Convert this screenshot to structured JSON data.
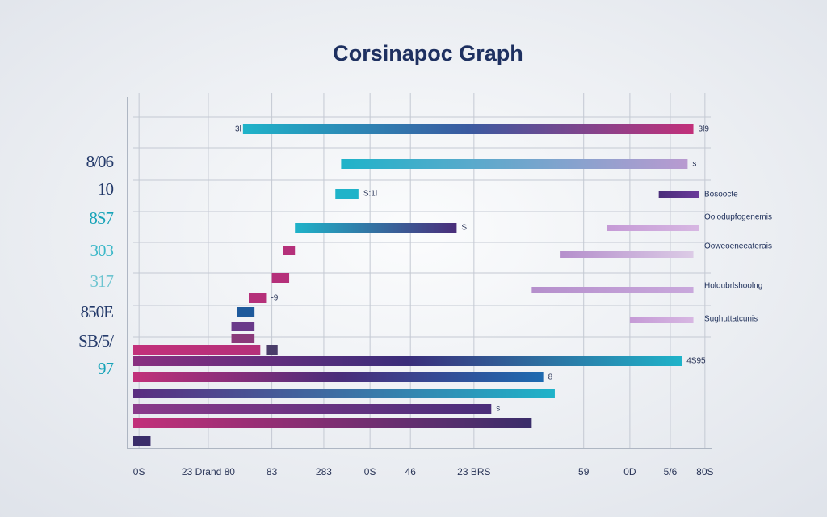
{
  "chart_data": {
    "type": "floating-bar",
    "title": "Corsinapoc Graph",
    "xlim": [
      0,
      100
    ],
    "xticks": [
      {
        "value": 1,
        "label": "0S"
      },
      {
        "value": 13,
        "label": "23 Drand 80"
      },
      {
        "value": 24,
        "label": "83"
      },
      {
        "value": 33,
        "label": "283"
      },
      {
        "value": 41,
        "label": "0S"
      },
      {
        "value": 48,
        "label": "46"
      },
      {
        "value": 59,
        "label": "23 BRS"
      },
      {
        "value": 78,
        "label": "59"
      },
      {
        "value": 86,
        "label": "0D"
      },
      {
        "value": 93,
        "label": "5/6"
      },
      {
        "value": 99,
        "label": "80S"
      }
    ],
    "grid": true,
    "ylabels": [
      {
        "text": "8/06",
        "color": "#243a6a"
      },
      {
        "text": "10",
        "color": "#243a6a"
      },
      {
        "text": "8S7",
        "color": "#17a3b8"
      },
      {
        "text": "303",
        "color": "#3cb8c8"
      },
      {
        "text": "317",
        "color": "#6cc4d0"
      },
      {
        "text": "850E",
        "color": "#243a6a"
      },
      {
        "text": "SB/5/",
        "color": "#243a6a"
      },
      {
        "text": "97",
        "color": "#17a3b8"
      }
    ],
    "bars": [
      {
        "start": 19,
        "end": 97,
        "start_label": "3l",
        "end_label": "3l9",
        "colors": [
          "#1fb3c9",
          "#3a5aa0",
          "#c2307a"
        ]
      },
      {
        "start": 36,
        "end": 96,
        "end_label": "s",
        "colors": [
          "#1fb3c9",
          "#b99ad0"
        ]
      },
      {
        "start": 35,
        "end": 39,
        "end_label": "S:1i",
        "colors": [
          "#1fb3c9",
          "#1fb3c9"
        ]
      },
      {
        "start": 28,
        "end": 56,
        "end_label": "S",
        "colors": [
          "#1fb3c9",
          "#4a2d7a"
        ]
      },
      {
        "start": 26,
        "end": 28,
        "colors": [
          "#b5307a",
          "#b5307a"
        ]
      },
      {
        "start": 24,
        "end": 27,
        "colors": [
          "#b5307a",
          "#b5307a"
        ]
      },
      {
        "start": 20,
        "end": 23,
        "end_label": "-9",
        "colors": [
          "#b5307a",
          "#b5307a"
        ]
      },
      {
        "start": 18,
        "end": 21,
        "colors": [
          "#1e5a9c",
          "#1e5a9c"
        ]
      },
      {
        "start": 17,
        "end": 21,
        "colors": [
          "#6a3a8a",
          "#6a3a8a"
        ]
      },
      {
        "start": 17,
        "end": 21,
        "colors": [
          "#8a3a7a",
          "#8a3a7a"
        ]
      },
      {
        "start": 0,
        "end": 22,
        "colors": [
          "#c2307a",
          "#b5307a"
        ]
      },
      {
        "start": 23,
        "end": 25,
        "colors": [
          "#4a3d6a",
          "#4a3d6a"
        ]
      },
      {
        "start": 0,
        "end": 95,
        "end_label": "4S95",
        "colors": [
          "#8a2f80",
          "#3a2d7a",
          "#1fb3c9"
        ]
      },
      {
        "start": 0,
        "end": 71,
        "end_label": "8",
        "colors": [
          "#c2307a",
          "#4a2d7a",
          "#1e6ab0"
        ]
      },
      {
        "start": 0,
        "end": 73,
        "colors": [
          "#5a2d80",
          "#1fb3c9"
        ]
      },
      {
        "start": 0,
        "end": 62,
        "end_label": "s",
        "colors": [
          "#8a3a8a",
          "#4a2d7a"
        ]
      },
      {
        "start": 0,
        "end": 69,
        "colors": [
          "#c2307a",
          "#3a2d6a"
        ]
      },
      {
        "start": 0,
        "end": 3,
        "colors": [
          "#3a2d6a",
          "#3a2d6a"
        ]
      }
    ],
    "annotations": [
      {
        "start": 91,
        "end": 98,
        "label": "Bosoocte",
        "colors": [
          "#4a2d7a",
          "#6a3a9a"
        ]
      },
      {
        "start": 82,
        "end": 98,
        "label": "Oolodupfogenemis",
        "colors": [
          "#c59ad6",
          "#d7b7e2"
        ]
      },
      {
        "start": 74,
        "end": 97,
        "label": "Ooweoeneeaterais",
        "colors": [
          "#b58fcc",
          "#dccbe6"
        ]
      },
      {
        "start": 69,
        "end": 97,
        "label": "Holdubrlshoolng",
        "colors": [
          "#b58fcc",
          "#c9a8dc"
        ]
      },
      {
        "start": 86,
        "end": 97,
        "label": "Sughuttatcunis",
        "colors": [
          "#c59ad6",
          "#d7b7e2"
        ]
      }
    ]
  }
}
